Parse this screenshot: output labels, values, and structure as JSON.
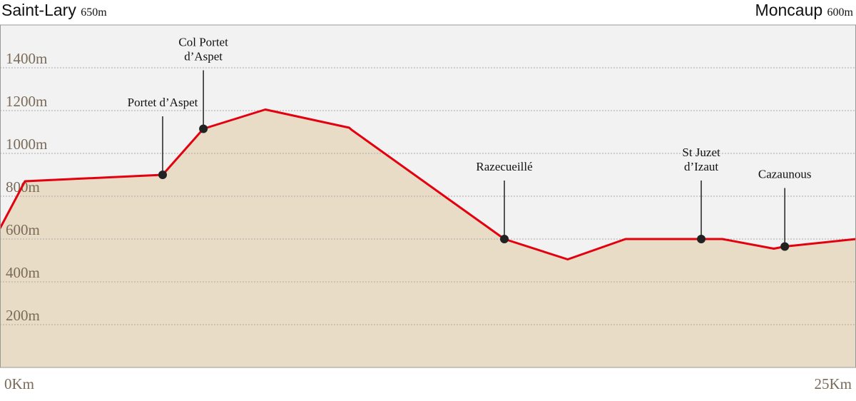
{
  "chart_data": {
    "type": "area",
    "start": {
      "name": "Saint-Lary",
      "elevation": {
        "value": 650,
        "label": "650m"
      }
    },
    "end": {
      "name": "Moncaup",
      "elevation": {
        "value": 600,
        "label": "600m"
      }
    },
    "x": [
      0,
      0.73,
      4.75,
      5.94,
      7.75,
      10.2,
      10.27,
      14.73,
      16.58,
      18.27,
      20.48,
      21.1,
      22.6,
      22.92,
      25
    ],
    "values": [
      650,
      870,
      900,
      1115,
      1205,
      1120,
      1110,
      600,
      505,
      600,
      600,
      600,
      555,
      565,
      600
    ],
    "line_color": "#e3000f",
    "fill_color": "#e9dcc7",
    "markers": [
      {
        "x": 4.75,
        "y": 900,
        "label": [
          "Portet d’Aspet"
        ]
      },
      {
        "x": 5.94,
        "y": 1115,
        "label": [
          "Col Portet",
          "d’Aspet"
        ]
      },
      {
        "x": 14.73,
        "y": 600,
        "label": [
          "Razecueillé"
        ]
      },
      {
        "x": 20.48,
        "y": 600,
        "label": [
          "St Juzet",
          "d’Izaut"
        ]
      },
      {
        "x": 22.92,
        "y": 565,
        "label": [
          "Cazaunous"
        ]
      }
    ],
    "xlim": [
      0,
      25
    ],
    "xticks": [
      {
        "value": 0,
        "label": "0Km"
      },
      {
        "value": 25,
        "label": "25Km"
      }
    ],
    "ylim": [
      0,
      1600
    ],
    "yticks": [
      {
        "value": 200,
        "label": "200m"
      },
      {
        "value": 400,
        "label": "400m"
      },
      {
        "value": 600,
        "label": "600m"
      },
      {
        "value": 800,
        "label": "800m"
      },
      {
        "value": 1000,
        "label": "1000m"
      },
      {
        "value": 1200,
        "label": "1200m"
      },
      {
        "value": 1400,
        "label": "1400m"
      }
    ],
    "grid": true
  }
}
